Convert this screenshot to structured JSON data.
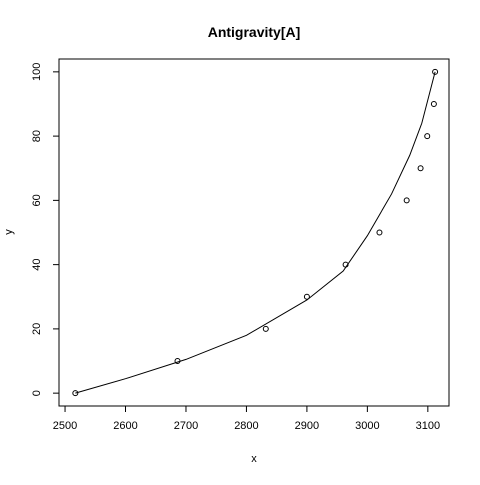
{
  "chart_data": {
    "type": "scatter",
    "title": "Antigravity[A]",
    "xlabel": "x",
    "ylabel": "y",
    "xlim": [
      2490,
      3135
    ],
    "ylim": [
      -4,
      104
    ],
    "xticks": [
      2500,
      2600,
      2700,
      2800,
      2900,
      3000,
      3100
    ],
    "yticks": [
      0,
      20,
      40,
      60,
      80,
      100
    ],
    "grid": false,
    "legend": "none",
    "points": [
      {
        "x": 2517,
        "y": 0
      },
      {
        "x": 2686,
        "y": 10
      },
      {
        "x": 2832,
        "y": 20
      },
      {
        "x": 2900,
        "y": 30
      },
      {
        "x": 2964,
        "y": 40
      },
      {
        "x": 3020,
        "y": 50
      },
      {
        "x": 3065,
        "y": 60
      },
      {
        "x": 3088,
        "y": 70
      },
      {
        "x": 3099,
        "y": 80
      },
      {
        "x": 3110,
        "y": 90
      },
      {
        "x": 3112,
        "y": 100
      }
    ],
    "fitted_curve": [
      {
        "x": 2517,
        "y": 0
      },
      {
        "x": 2600,
        "y": 4.5
      },
      {
        "x": 2700,
        "y": 10.5
      },
      {
        "x": 2800,
        "y": 18
      },
      {
        "x": 2900,
        "y": 29
      },
      {
        "x": 2960,
        "y": 38
      },
      {
        "x": 3000,
        "y": 49
      },
      {
        "x": 3040,
        "y": 62
      },
      {
        "x": 3070,
        "y": 74
      },
      {
        "x": 3090,
        "y": 84
      },
      {
        "x": 3112,
        "y": 100
      }
    ],
    "colors": {
      "axis": "#000000",
      "points": "#000000",
      "curve": "#000000",
      "background": "#ffffff"
    }
  }
}
